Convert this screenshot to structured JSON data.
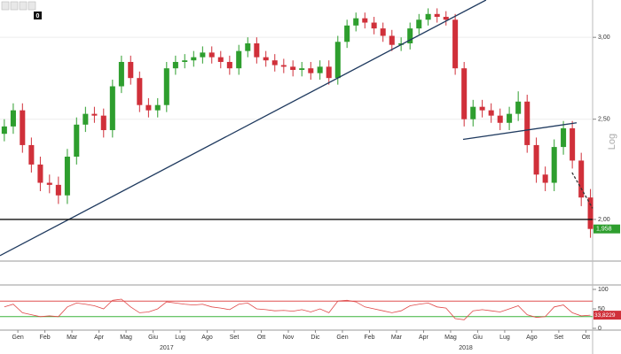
{
  "toolbar_badge": "0",
  "chart_data": [
    {
      "type": "candlestick",
      "y_label": "Log",
      "log_scale": true,
      "xlim": [
        -0.66,
        21.25
      ],
      "ylim": [
        1.83,
        3.26
      ],
      "yticks": [
        {
          "value": 3.0,
          "label": "3,00"
        },
        {
          "value": 2.5,
          "label": "2,50"
        },
        {
          "value": 2.0,
          "label": "2,00"
        }
      ],
      "up_color": "#2e9e2e",
      "down_color": "#d0303a",
      "x": [
        -0.5,
        -0.17,
        0.17,
        0.5,
        0.83,
        1.17,
        1.5,
        1.83,
        2.17,
        2.5,
        2.83,
        3.17,
        3.5,
        3.83,
        4.17,
        4.5,
        4.83,
        5.17,
        5.5,
        5.83,
        6.17,
        6.5,
        6.83,
        7.17,
        7.5,
        7.83,
        8.17,
        8.5,
        8.83,
        9.17,
        9.5,
        9.83,
        10.17,
        10.5,
        10.83,
        11.17,
        11.5,
        11.83,
        12.17,
        12.5,
        12.83,
        13.17,
        13.5,
        13.83,
        14.17,
        14.5,
        14.83,
        15.17,
        15.5,
        15.83,
        16.17,
        16.5,
        16.83,
        17.17,
        17.5,
        17.83,
        18.17,
        18.5,
        18.83,
        19.17,
        19.5,
        19.83,
        20.17,
        20.5,
        20.83,
        21.17
      ],
      "open": [
        2.42,
        2.46,
        2.55,
        2.36,
        2.26,
        2.17,
        2.16,
        2.11,
        2.3,
        2.47,
        2.53,
        2.52,
        2.44,
        2.69,
        2.84,
        2.74,
        2.58,
        2.55,
        2.58,
        2.8,
        2.84,
        2.85,
        2.87,
        2.9,
        2.87,
        2.84,
        2.8,
        2.91,
        2.96,
        2.87,
        2.85,
        2.82,
        2.81,
        2.79,
        2.8,
        2.77,
        2.81,
        2.74,
        2.97,
        3.08,
        3.13,
        3.1,
        3.06,
        3.01,
        2.95,
        2.96,
        3.06,
        3.12,
        3.16,
        3.14,
        3.12,
        2.8,
        2.5,
        2.57,
        2.55,
        2.52,
        2.48,
        2.53,
        2.6,
        2.36,
        2.21,
        2.17,
        2.35,
        2.45,
        2.28,
        2.1
      ],
      "high": [
        2.5,
        2.59,
        2.59,
        2.4,
        2.3,
        2.21,
        2.2,
        2.34,
        2.51,
        2.57,
        2.57,
        2.56,
        2.73,
        2.88,
        2.88,
        2.78,
        2.62,
        2.62,
        2.84,
        2.88,
        2.89,
        2.91,
        2.94,
        2.94,
        2.91,
        2.88,
        2.95,
        3.0,
        3.0,
        2.91,
        2.89,
        2.86,
        2.85,
        2.84,
        2.84,
        2.85,
        2.85,
        3.01,
        3.12,
        3.17,
        3.17,
        3.14,
        3.1,
        3.05,
        3.0,
        3.1,
        3.16,
        3.2,
        3.2,
        3.18,
        3.16,
        2.84,
        2.61,
        2.61,
        2.59,
        2.56,
        2.57,
        2.66,
        2.64,
        2.4,
        2.25,
        2.39,
        2.49,
        2.49,
        2.32,
        2.14
      ],
      "low": [
        2.38,
        2.42,
        2.32,
        2.22,
        2.13,
        2.12,
        2.07,
        2.07,
        2.26,
        2.43,
        2.48,
        2.4,
        2.4,
        2.65,
        2.7,
        2.54,
        2.51,
        2.51,
        2.54,
        2.76,
        2.8,
        2.81,
        2.83,
        2.83,
        2.8,
        2.76,
        2.76,
        2.87,
        2.83,
        2.81,
        2.78,
        2.77,
        2.75,
        2.75,
        2.73,
        2.73,
        2.7,
        2.7,
        2.93,
        3.04,
        3.06,
        3.02,
        2.97,
        2.91,
        2.91,
        2.92,
        3.02,
        3.08,
        3.1,
        3.08,
        2.76,
        2.46,
        2.46,
        2.51,
        2.48,
        2.44,
        2.44,
        2.49,
        2.32,
        2.17,
        2.13,
        2.13,
        2.31,
        2.24,
        2.06,
        1.92
      ],
      "close": [
        2.46,
        2.55,
        2.36,
        2.26,
        2.17,
        2.16,
        2.11,
        2.3,
        2.47,
        2.53,
        2.52,
        2.44,
        2.69,
        2.84,
        2.74,
        2.58,
        2.55,
        2.58,
        2.8,
        2.84,
        2.85,
        2.87,
        2.9,
        2.87,
        2.84,
        2.8,
        2.91,
        2.96,
        2.87,
        2.85,
        2.82,
        2.81,
        2.79,
        2.8,
        2.77,
        2.81,
        2.74,
        2.97,
        3.08,
        3.13,
        3.1,
        3.06,
        3.01,
        2.95,
        2.96,
        3.06,
        3.12,
        3.16,
        3.14,
        3.12,
        2.8,
        2.5,
        2.57,
        2.55,
        2.52,
        2.48,
        2.53,
        2.6,
        2.36,
        2.21,
        2.17,
        2.35,
        2.45,
        2.28,
        2.1,
        1.958
      ],
      "last_price": {
        "value": 1.958,
        "label": "1,958",
        "color": "#2e9e2e"
      },
      "lines": [
        {
          "x": [
            -0.66,
            17.31
          ],
          "y": [
            1.845,
            3.26
          ],
          "color": "#1f3a5f",
          "dashed": false
        },
        {
          "x": [
            16.46,
            20.66
          ],
          "y": [
            2.39,
            2.48
          ],
          "color": "#1f3a5f",
          "dashed": false
        },
        {
          "x": [
            20.49,
            21.25
          ],
          "y": [
            2.22,
            2.05
          ],
          "color": "#333333",
          "dashed": true
        },
        {
          "x": [
            -0.66,
            21.25
          ],
          "y": [
            2.0,
            2.0
          ],
          "color": "#111111",
          "dashed": false
        }
      ]
    },
    {
      "type": "line",
      "xlim": [
        -0.66,
        21.25
      ],
      "ylim": [
        0,
        100
      ],
      "yticks": [
        100,
        50,
        0
      ],
      "color": "#e04848",
      "xticks": [
        {
          "value": 0,
          "label": "Gen"
        },
        {
          "value": 1,
          "label": "Feb"
        },
        {
          "value": 2,
          "label": "Mar"
        },
        {
          "value": 3,
          "label": "Apr"
        },
        {
          "value": 4,
          "label": "Mag"
        },
        {
          "value": 5,
          "label": "Giu"
        },
        {
          "value": 6,
          "label": "Lug"
        },
        {
          "value": 7,
          "label": "Ago"
        },
        {
          "value": 8,
          "label": "Set"
        },
        {
          "value": 9,
          "label": "Ott"
        },
        {
          "value": 10,
          "label": "Nov"
        },
        {
          "value": 11,
          "label": "Dic"
        },
        {
          "value": 12,
          "label": "Gen"
        },
        {
          "value": 13,
          "label": "Feb"
        },
        {
          "value": 14,
          "label": "Mar"
        },
        {
          "value": 15,
          "label": "Apr"
        },
        {
          "value": 16,
          "label": "Mag"
        },
        {
          "value": 17,
          "label": "Giu"
        },
        {
          "value": 18,
          "label": "Lug"
        },
        {
          "value": 19,
          "label": "Ago"
        },
        {
          "value": 20,
          "label": "Set"
        },
        {
          "value": 21,
          "label": "Ott"
        }
      ],
      "year_ticks": [
        {
          "value": 5.5,
          "label": "2017"
        },
        {
          "value": 16.56,
          "label": "2018"
        }
      ],
      "levels": [
        {
          "value": 70,
          "color": "#e05050"
        },
        {
          "value": 30,
          "color": "#3cb43c"
        }
      ],
      "x": [
        -0.5,
        -0.17,
        0.17,
        0.5,
        0.83,
        1.17,
        1.5,
        1.83,
        2.17,
        2.5,
        2.83,
        3.17,
        3.5,
        3.83,
        4.17,
        4.5,
        4.83,
        5.17,
        5.5,
        5.83,
        6.17,
        6.5,
        6.83,
        7.17,
        7.5,
        7.83,
        8.17,
        8.5,
        8.83,
        9.17,
        9.5,
        9.83,
        10.17,
        10.5,
        10.83,
        11.17,
        11.5,
        11.83,
        12.17,
        12.5,
        12.83,
        13.17,
        13.5,
        13.83,
        14.17,
        14.5,
        14.83,
        15.17,
        15.5,
        15.83,
        16.17,
        16.5,
        16.83,
        17.17,
        17.5,
        17.83,
        18.17,
        18.5,
        18.83,
        19.17,
        19.5,
        19.83,
        20.17,
        20.5,
        20.83,
        21.17
      ],
      "values": [
        55,
        62,
        40,
        35,
        30,
        32,
        30,
        55,
        65,
        62,
        58,
        50,
        72,
        75,
        55,
        40,
        42,
        50,
        68,
        65,
        62,
        60,
        62,
        55,
        52,
        48,
        62,
        65,
        50,
        48,
        45,
        46,
        44,
        48,
        42,
        50,
        40,
        70,
        72,
        68,
        55,
        50,
        45,
        40,
        45,
        58,
        62,
        65,
        55,
        52,
        25,
        22,
        45,
        48,
        45,
        42,
        50,
        58,
        35,
        28,
        30,
        55,
        60,
        40,
        32,
        33.8229
      ],
      "last_value": {
        "value": 33.8229,
        "label": "33,8229",
        "color": "#d0303a"
      }
    }
  ]
}
